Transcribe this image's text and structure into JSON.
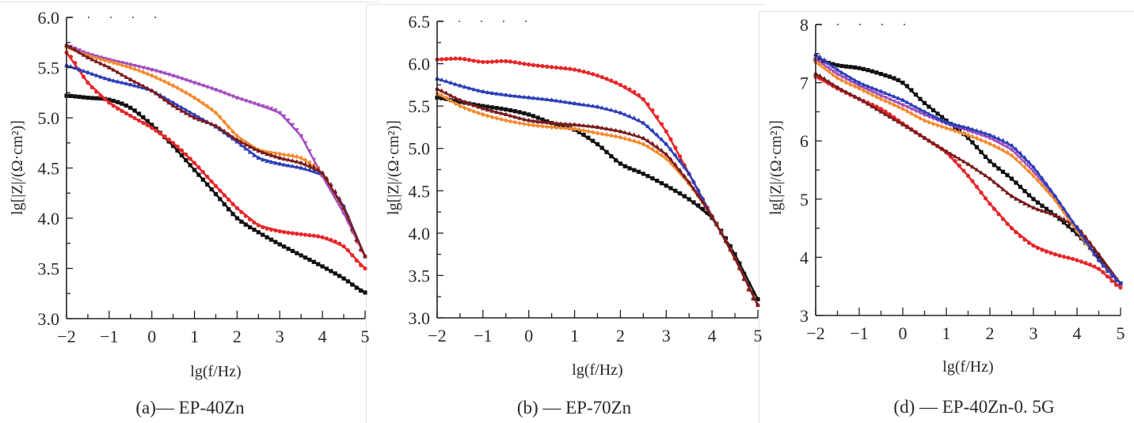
{
  "chart_data": [
    {
      "type": "line",
      "panel": "a",
      "title": "",
      "caption": "(a)— EP-40Zn",
      "xlabel": "lg(f/Hz)",
      "ylabel": "lg[|Z|/(Ω·cm²)]",
      "xlim": [
        -2,
        5
      ],
      "ylim": [
        3.0,
        6.0
      ],
      "xticks": [
        "−2",
        "−1",
        "0",
        "1",
        "2",
        "3",
        "4",
        "5"
      ],
      "yticks": [
        "3.0",
        "3.5",
        "4.0",
        "4.5",
        "5.0",
        "5.5",
        "6.0"
      ],
      "x": [
        -2,
        -1.5,
        -1,
        -0.5,
        0,
        0.5,
        1,
        1.5,
        2,
        2.5,
        3,
        3.5,
        4,
        4.5,
        5
      ],
      "series": [
        {
          "name": "black",
          "color": "#111111",
          "marker": "square",
          "values": [
            5.22,
            5.2,
            5.18,
            5.1,
            4.93,
            4.72,
            4.48,
            4.24,
            4.0,
            3.86,
            3.74,
            3.63,
            3.52,
            3.4,
            3.26
          ]
        },
        {
          "name": "red",
          "color": "#e8262a",
          "marker": "circle",
          "values": [
            5.65,
            5.35,
            5.15,
            5.02,
            4.9,
            4.75,
            4.55,
            4.32,
            4.1,
            3.93,
            3.87,
            3.84,
            3.81,
            3.72,
            3.5
          ]
        },
        {
          "name": "blue",
          "color": "#2b3fb8",
          "marker": "triangle-up",
          "values": [
            5.52,
            5.45,
            5.38,
            5.33,
            5.27,
            5.15,
            5.03,
            4.91,
            4.76,
            4.6,
            4.54,
            4.5,
            4.43,
            4.12,
            3.62
          ]
        },
        {
          "name": "purple",
          "color": "#a34fc0",
          "marker": "triangle-down",
          "values": [
            5.72,
            5.64,
            5.58,
            5.53,
            5.48,
            5.42,
            5.35,
            5.28,
            5.2,
            5.13,
            5.05,
            4.82,
            4.42,
            4.05,
            3.62
          ]
        },
        {
          "name": "orange",
          "color": "#f58a2e",
          "marker": "diamond",
          "values": [
            5.7,
            5.62,
            5.56,
            5.5,
            5.42,
            5.32,
            5.2,
            5.05,
            4.82,
            4.68,
            4.64,
            4.6,
            4.45,
            4.1,
            3.62
          ]
        },
        {
          "name": "brown",
          "color": "#7a1c1f",
          "marker": "triangle-up",
          "values": [
            5.72,
            5.6,
            5.5,
            5.38,
            5.27,
            5.12,
            5.0,
            4.92,
            4.78,
            4.67,
            4.6,
            4.55,
            4.45,
            4.1,
            3.62
          ]
        }
      ]
    },
    {
      "type": "line",
      "panel": "b",
      "title": "",
      "caption": "(b) — EP-70Zn",
      "xlabel": "lg(f/Hz)",
      "ylabel": "lg[|Z|/(Ω·cm²)]",
      "xlim": [
        -2,
        5
      ],
      "ylim": [
        3.0,
        6.5
      ],
      "xticks": [
        "−2",
        "−1",
        "0",
        "1",
        "2",
        "3",
        "4",
        "5"
      ],
      "yticks": [
        "3.0",
        "3.5",
        "4.0",
        "4.5",
        "5.0",
        "5.5",
        "6.0",
        "6.5"
      ],
      "x": [
        -2,
        -1.5,
        -1,
        -0.5,
        0,
        0.5,
        1,
        1.5,
        2,
        2.5,
        3,
        3.5,
        4,
        4.5,
        5
      ],
      "series": [
        {
          "name": "black",
          "color": "#111111",
          "marker": "square",
          "values": [
            5.6,
            5.55,
            5.5,
            5.46,
            5.4,
            5.3,
            5.22,
            5.05,
            4.82,
            4.7,
            4.56,
            4.4,
            4.18,
            3.75,
            3.22
          ]
        },
        {
          "name": "red",
          "color": "#e8262a",
          "marker": "circle",
          "values": [
            6.05,
            6.06,
            6.02,
            6.03,
            5.99,
            5.96,
            5.93,
            5.86,
            5.75,
            5.58,
            5.2,
            4.7,
            4.2,
            3.7,
            3.15
          ]
        },
        {
          "name": "blue",
          "color": "#2b3fb8",
          "marker": "triangle-up",
          "values": [
            5.82,
            5.74,
            5.67,
            5.63,
            5.6,
            5.57,
            5.53,
            5.49,
            5.42,
            5.3,
            5.05,
            4.7,
            4.2,
            3.7,
            3.15
          ]
        },
        {
          "name": "orange",
          "color": "#f58a2e",
          "marker": "diamond",
          "values": [
            5.65,
            5.5,
            5.4,
            5.33,
            5.28,
            5.25,
            5.23,
            5.18,
            5.13,
            5.05,
            4.88,
            4.58,
            4.2,
            3.7,
            3.15
          ]
        },
        {
          "name": "brown",
          "color": "#7a1c1f",
          "marker": "triangle-up",
          "values": [
            5.7,
            5.57,
            5.47,
            5.4,
            5.33,
            5.3,
            5.28,
            5.25,
            5.2,
            5.12,
            4.93,
            4.6,
            4.2,
            3.7,
            3.15
          ]
        }
      ]
    },
    {
      "type": "line",
      "panel": "d",
      "title": "",
      "caption": "(d) — EP-40Zn-0. 5G",
      "xlabel": "lg(f/Hz)",
      "ylabel": "lg[|Z|/(Ω·cm²)]",
      "xlim": [
        -2,
        5
      ],
      "ylim": [
        3,
        8
      ],
      "xticks": [
        "−2",
        "−1",
        "0",
        "1",
        "2",
        "3",
        "4",
        "5"
      ],
      "yticks": [
        "3",
        "4",
        "5",
        "6",
        "7",
        "8"
      ],
      "x": [
        -2,
        -1.5,
        -1,
        -0.5,
        0,
        0.5,
        1,
        1.5,
        2,
        2.5,
        3,
        3.5,
        4,
        4.5,
        5
      ],
      "series": [
        {
          "name": "black",
          "color": "#111111",
          "marker": "square",
          "values": [
            7.4,
            7.3,
            7.25,
            7.15,
            7.0,
            6.65,
            6.35,
            6.05,
            5.65,
            5.35,
            5.0,
            4.72,
            4.4,
            4.0,
            3.55
          ]
        },
        {
          "name": "red",
          "color": "#e8262a",
          "marker": "circle",
          "values": [
            7.1,
            6.9,
            6.72,
            6.55,
            6.3,
            6.05,
            5.8,
            5.4,
            4.92,
            4.5,
            4.2,
            4.05,
            3.95,
            3.8,
            3.48
          ]
        },
        {
          "name": "brown",
          "color": "#7a1c1f",
          "marker": "triangle-up",
          "values": [
            7.15,
            6.92,
            6.72,
            6.5,
            6.28,
            6.05,
            5.82,
            5.6,
            5.35,
            5.05,
            4.85,
            4.72,
            4.52,
            4.05,
            3.55
          ]
        },
        {
          "name": "purple",
          "color": "#a34fc0",
          "marker": "triangle-down",
          "values": [
            7.4,
            7.15,
            6.95,
            6.78,
            6.62,
            6.45,
            6.3,
            6.18,
            6.05,
            5.85,
            5.48,
            5.02,
            4.48,
            3.95,
            3.55
          ]
        },
        {
          "name": "orange",
          "color": "#f58a2e",
          "marker": "diamond",
          "values": [
            7.35,
            7.08,
            6.9,
            6.72,
            6.55,
            6.35,
            6.22,
            6.1,
            5.95,
            5.75,
            5.4,
            4.98,
            4.45,
            3.95,
            3.55
          ]
        },
        {
          "name": "blue",
          "color": "#2b3fb8",
          "marker": "triangle-up",
          "values": [
            7.48,
            7.22,
            7.0,
            6.85,
            6.7,
            6.5,
            6.32,
            6.22,
            6.1,
            5.92,
            5.55,
            5.05,
            4.5,
            3.95,
            3.55
          ]
        }
      ]
    }
  ]
}
